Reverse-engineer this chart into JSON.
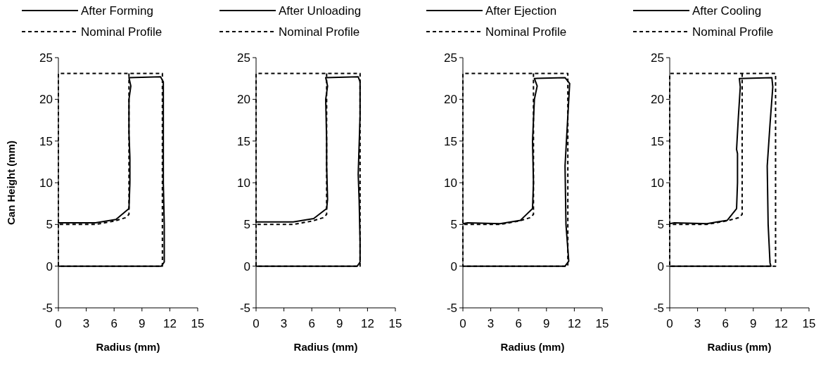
{
  "chart_data": [
    {
      "type": "line",
      "ylabel": "Can Height (mm)",
      "xlabel": "Radius (mm)",
      "xlim": [
        0,
        15
      ],
      "ylim": [
        -5,
        25
      ],
      "xticks": [
        0,
        3,
        6,
        9,
        12,
        15
      ],
      "yticks": [
        -5,
        0,
        5,
        10,
        15,
        20,
        25
      ],
      "legend": "top",
      "series": [
        {
          "name": "After Forming",
          "color": "#000000",
          "line_style": "solid",
          "x": [
            0,
            4,
            6.2,
            7.6,
            7.7,
            7.7,
            7.6,
            7.6,
            7.8,
            7.6,
            11,
            11.3,
            11.3,
            11.3,
            11.4,
            11.4,
            11.1,
            0
          ],
          "values": [
            5.2,
            5.2,
            5.6,
            6.9,
            10,
            13,
            16,
            20,
            21.6,
            22.6,
            22.7,
            22.1,
            15,
            10,
            5,
            0.5,
            0,
            0
          ]
        },
        {
          "name": "Nominal Profile",
          "color": "#000000",
          "line_style": "dashed",
          "x": [
            7.6,
            7.6,
            7.2,
            6,
            4,
            0,
            0,
            11.2,
            11.2,
            0,
            0
          ],
          "values": [
            23.1,
            6.2,
            5.8,
            5.4,
            5,
            5,
            23.1,
            23.1,
            0,
            0,
            5
          ]
        }
      ]
    },
    {
      "type": "line",
      "xlabel": "Radius (mm)",
      "xlim": [
        0,
        15
      ],
      "ylim": [
        -5,
        25
      ],
      "xticks": [
        0,
        3,
        6,
        9,
        12,
        15
      ],
      "yticks": [
        -5,
        0,
        5,
        10,
        15,
        20,
        25
      ],
      "legend": "top",
      "series": [
        {
          "name": "After Unloading",
          "color": "#000000",
          "line_style": "solid",
          "x": [
            0,
            4,
            6.2,
            7.6,
            7.7,
            7.6,
            7.6,
            7.5,
            7.7,
            7.5,
            11,
            11.2,
            11.2,
            11,
            11.1,
            11.2,
            11.2,
            10.9,
            0
          ],
          "values": [
            5.3,
            5.3,
            5.7,
            6.9,
            8,
            12,
            15,
            20,
            21.6,
            22.6,
            22.7,
            22.1,
            18,
            11,
            8,
            3,
            0.5,
            0,
            0
          ]
        },
        {
          "name": "Nominal Profile",
          "color": "#000000",
          "line_style": "dashed",
          "x": [
            7.6,
            7.6,
            7.2,
            6,
            4,
            0,
            0,
            11.2,
            11.2,
            0,
            0
          ],
          "values": [
            23.1,
            6.2,
            5.8,
            5.4,
            5,
            5,
            23.1,
            23.1,
            0,
            0,
            5
          ]
        }
      ]
    },
    {
      "type": "line",
      "xlabel": "Radius (mm)",
      "xlim": [
        0,
        15
      ],
      "ylim": [
        -5,
        25
      ],
      "xticks": [
        0,
        3,
        6,
        9,
        12,
        15
      ],
      "yticks": [
        -5,
        0,
        5,
        10,
        15,
        20,
        25
      ],
      "legend": "top",
      "series": [
        {
          "name": "After Ejection",
          "color": "#000000",
          "line_style": "solid",
          "x": [
            0,
            0.5,
            4,
            6.2,
            7.5,
            7.6,
            7.5,
            7.7,
            8,
            7.7,
            11,
            11.5,
            11.3,
            11,
            11.1,
            11.4,
            11,
            0
          ],
          "values": [
            5.1,
            5.2,
            5.1,
            5.5,
            6.9,
            10,
            15,
            20,
            21.6,
            22.5,
            22.6,
            21.9,
            18,
            12,
            5,
            0.6,
            0,
            0
          ]
        },
        {
          "name": "Nominal Profile",
          "color": "#000000",
          "line_style": "dashed",
          "x": [
            7.6,
            7.6,
            7.2,
            6,
            4,
            0,
            0,
            11.3,
            11.3,
            0,
            0
          ],
          "values": [
            23.1,
            6.2,
            5.8,
            5.4,
            5,
            5,
            23.1,
            23.1,
            0,
            0,
            5
          ]
        }
      ]
    },
    {
      "type": "line",
      "xlabel": "Radius (mm)",
      "xlim": [
        0,
        15
      ],
      "ylim": [
        -5,
        25
      ],
      "xticks": [
        0,
        3,
        6,
        9,
        12,
        15
      ],
      "yticks": [
        -5,
        0,
        5,
        10,
        15,
        20,
        25
      ],
      "legend": "top",
      "series": [
        {
          "name": "After Cooling",
          "color": "#000000",
          "line_style": "solid",
          "x": [
            0,
            0.5,
            4,
            6.2,
            7.2,
            7.3,
            7.3,
            7.2,
            7.4,
            7.6,
            7.5,
            11,
            11.1,
            10.8,
            10.5,
            10.6,
            10.8,
            10.9,
            0
          ],
          "values": [
            5.1,
            5.2,
            5.1,
            5.5,
            6.9,
            10,
            13.5,
            14,
            18,
            21.5,
            22.5,
            22.6,
            21.5,
            17,
            12,
            5,
            0.4,
            0,
            0
          ]
        },
        {
          "name": "Nominal Profile",
          "color": "#000000",
          "line_style": "dashed",
          "x": [
            7.8,
            7.8,
            7.4,
            6,
            4,
            0,
            0,
            11.4,
            11.4,
            0,
            0
          ],
          "values": [
            23.1,
            6.2,
            5.8,
            5.4,
            5,
            5,
            23.1,
            23.1,
            0,
            0,
            5
          ]
        }
      ]
    }
  ]
}
